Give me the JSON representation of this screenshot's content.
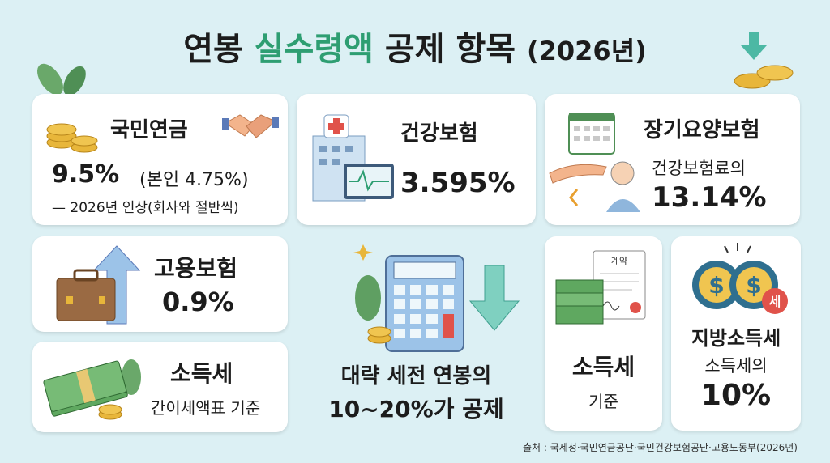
{
  "header": {
    "title_lead": "연봉",
    "title_highlight": "실수령액",
    "title_tail": "공제 항목",
    "title_year": "(2026년)"
  },
  "cards": [
    {
      "heading": "국민연금",
      "value": "9.5%",
      "note": "(본인 4.75%)",
      "subnote": "— 2026년 인상(회사와 절반씩)"
    },
    {
      "heading": "건강보험",
      "value": "3.595%"
    },
    {
      "heading": "장기요양보험",
      "note": "건강보험료의",
      "value": "13.14%"
    },
    {
      "heading": "고용보험",
      "value": "0.9%"
    },
    {
      "heading": "소득세",
      "note": "간이세액표 기준"
    },
    {
      "heading": "소득세",
      "note": "기준",
      "icon_label": "계약"
    },
    {
      "heading": "지방소득세",
      "note": "소득세의",
      "value": "10%",
      "icon_label": "세"
    }
  ],
  "summary": {
    "line1": "대략 세전 연봉의",
    "line2": "10~20%가 공제"
  },
  "footer": {
    "source": "출처 : 국세청·국민연금공단·국민건강보험공단·고용노동부(2026년)"
  }
}
